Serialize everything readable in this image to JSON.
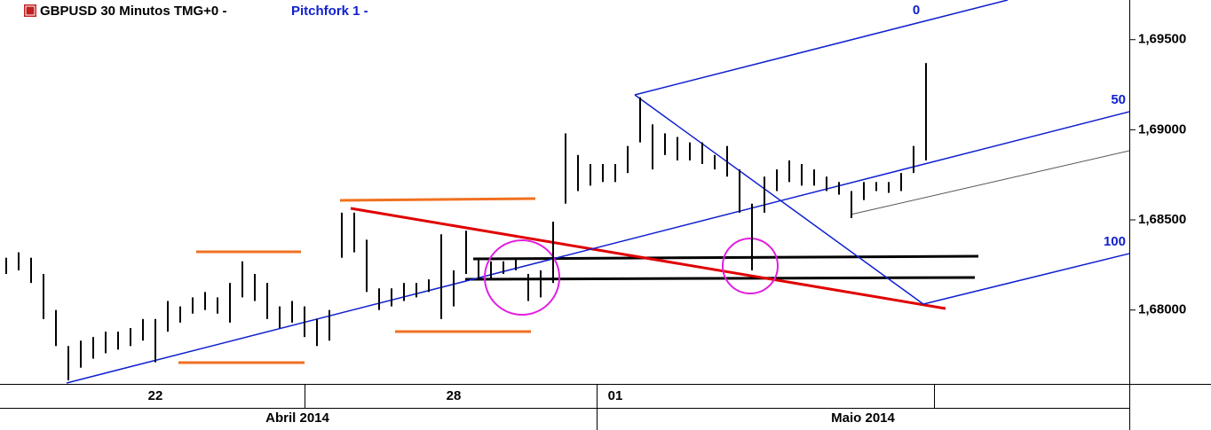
{
  "chart_data": {
    "type": "ohlc",
    "title": "GBPUSD 30 Minutos TMG+0 -",
    "subtitle": "Pitchfork 1 -",
    "categories": [
      null,
      null,
      null,
      null,
      null,
      null,
      null,
      null,
      null,
      null,
      null,
      null,
      "22",
      null,
      null,
      null,
      null,
      null,
      null,
      null,
      null,
      null,
      null,
      null,
      null,
      null,
      null,
      null,
      null,
      null,
      null,
      null,
      null,
      null,
      null,
      null,
      "28",
      null,
      null,
      null,
      null,
      null,
      null,
      null,
      null,
      null,
      null,
      null,
      null,
      "01",
      null,
      null,
      null,
      null,
      null,
      null,
      null,
      null,
      null,
      null,
      null,
      null,
      null,
      null,
      null,
      null,
      null,
      null,
      null,
      null,
      null,
      null,
      null,
      null,
      null
    ],
    "x_groups": [
      "Abril 2014",
      "Maio 2014"
    ],
    "color": "#000000",
    "high": [
      1.6829,
      1.6832,
      1.6829,
      1.682,
      1.68,
      1.678,
      1.6783,
      1.6785,
      1.6788,
      1.6788,
      1.679,
      1.6795,
      1.6795,
      1.6805,
      1.6802,
      1.6807,
      1.681,
      1.6807,
      1.6815,
      1.6827,
      1.682,
      1.6815,
      1.6802,
      1.6805,
      1.6802,
      1.6795,
      1.68,
      1.6854,
      1.6854,
      1.6839,
      1.6812,
      1.6812,
      1.6815,
      1.6815,
      1.6817,
      1.6842,
      1.6822,
      1.6844,
      1.6829,
      1.6827,
      1.6827,
      1.6829,
      1.682,
      1.6822,
      1.6849,
      1.6898,
      1.6886,
      1.6881,
      1.6881,
      1.6881,
      1.6891,
      1.6918,
      1.6903,
      1.6898,
      1.6896,
      1.6893,
      1.6893,
      1.6886,
      1.6891,
      1.6878,
      1.6859,
      1.6874,
      1.6878,
      1.6883,
      1.6881,
      1.6878,
      1.6874,
      1.6871,
      1.6866,
      1.6871,
      1.6871,
      1.6871,
      1.6876,
      1.6891,
      1.6937
    ],
    "low": [
      1.682,
      1.6822,
      1.6815,
      1.6795,
      1.678,
      1.6761,
      1.6768,
      1.6773,
      1.6776,
      1.6778,
      1.678,
      1.6783,
      1.6771,
      1.6788,
      1.6793,
      1.6798,
      1.68,
      1.6798,
      1.6793,
      1.6807,
      1.6805,
      1.6795,
      1.679,
      1.6793,
      1.6785,
      1.678,
      1.6783,
      1.6829,
      1.6832,
      1.681,
      1.68,
      1.6802,
      1.6805,
      1.6807,
      1.681,
      1.6795,
      1.6802,
      1.682,
      1.6817,
      1.6817,
      1.682,
      1.6822,
      1.6805,
      1.6807,
      1.6815,
      1.6859,
      1.6866,
      1.6869,
      1.6871,
      1.6871,
      1.6876,
      1.6893,
      1.6878,
      1.6886,
      1.6883,
      1.6883,
      1.6881,
      1.6878,
      1.6874,
      1.6854,
      1.6822,
      1.6854,
      1.6866,
      1.6871,
      1.6869,
      1.6869,
      1.6866,
      1.6864,
      1.6851,
      1.6861,
      1.6866,
      1.6865,
      1.6866,
      1.6876,
      1.6883
    ],
    "ylim": [
      1.6759,
      1.6972
    ],
    "yticks": [
      {
        "value": 1.68,
        "label": "1,68000"
      },
      {
        "value": 1.685,
        "label": "1,68500"
      },
      {
        "value": 1.69,
        "label": "1,69000"
      },
      {
        "value": 1.695,
        "label": "1,69500"
      }
    ],
    "pitchfork_labels": [
      "0",
      "50",
      "100"
    ]
  }
}
